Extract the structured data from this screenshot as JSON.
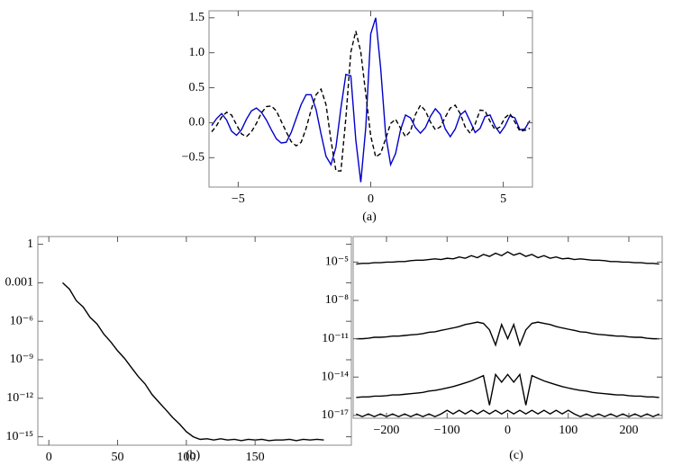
{
  "chart_data": [
    {
      "type": "line",
      "caption": "(a)",
      "x": [
        -6,
        -5.8125,
        -5.625,
        -5.4375,
        -5.25,
        -5.0625,
        -4.875,
        -4.6875,
        -4.5,
        -4.3125,
        -4.125,
        -3.9375,
        -3.75,
        -3.5625,
        -3.375,
        -3.1875,
        -3,
        -2.8125,
        -2.625,
        -2.4375,
        -2.25,
        -2.0625,
        -1.875,
        -1.6875,
        -1.5,
        -1.3125,
        -1.125,
        -0.9375,
        -0.75,
        -0.5625,
        -0.375,
        -0.1875,
        0,
        0.1875,
        0.375,
        0.5625,
        0.75,
        0.9375,
        1.125,
        1.3125,
        1.5,
        1.6875,
        1.875,
        2.0625,
        2.25,
        2.4375,
        2.625,
        2.8125,
        3,
        3.1875,
        3.375,
        3.5625,
        3.75,
        3.9375,
        4.125,
        4.3125,
        4.5,
        4.6875,
        4.875,
        5.0625,
        5.25,
        5.4375,
        5.625,
        5.8125,
        6
      ],
      "series": [
        {
          "color": "#0000cc",
          "dashed": false,
          "values": [
            -0.04,
            0.06,
            0.13,
            0.04,
            -0.12,
            -0.18,
            -0.1,
            0.05,
            0.17,
            0.21,
            0.15,
            0.04,
            -0.1,
            -0.23,
            -0.29,
            -0.28,
            -0.14,
            0.06,
            0.26,
            0.4,
            0.4,
            0.19,
            -0.16,
            -0.48,
            -0.6,
            -0.35,
            0.21,
            0.69,
            0.67,
            -0.25,
            -0.85,
            -0.07,
            1.27,
            1.5,
            0.78,
            -0.17,
            -0.6,
            -0.44,
            -0.1,
            0.11,
            0.07,
            -0.07,
            -0.15,
            -0.07,
            0.09,
            0.2,
            0.12,
            -0.09,
            -0.2,
            -0.09,
            0.11,
            0.17,
            0.02,
            -0.14,
            -0.08,
            0.09,
            0.11,
            -0.05,
            -0.15,
            -0.05,
            0.1,
            0.07,
            -0.1,
            -0.09,
            0.03
          ]
        },
        {
          "color": "#000000",
          "dashed": true,
          "values": [
            -0.13,
            -0.04,
            0.08,
            0.15,
            0.11,
            -0.03,
            -0.16,
            -0.2,
            -0.13,
            -0.01,
            0.14,
            0.23,
            0.24,
            0.17,
            0.02,
            -0.13,
            -0.27,
            -0.33,
            -0.28,
            -0.08,
            0.18,
            0.4,
            0.48,
            0.26,
            -0.25,
            -0.69,
            -0.69,
            0.07,
            1.01,
            1.31,
            1.01,
            0.41,
            -0.19,
            -0.49,
            -0.44,
            -0.23,
            -0.01,
            0.05,
            -0.08,
            -0.2,
            -0.12,
            0.12,
            0.25,
            0.17,
            0.01,
            -0.1,
            -0.06,
            0.08,
            0.21,
            0.25,
            0.13,
            -0.06,
            -0.15,
            -0.02,
            0.18,
            0.17,
            0.02,
            -0.1,
            -0.06,
            0.07,
            0.13,
            0.01,
            -0.12,
            -0.11,
            -0.08
          ]
        }
      ],
      "xlim": [
        -6.1,
        6.1
      ],
      "xticks": [
        {
          "value": -5,
          "label": "−5"
        },
        0,
        5
      ],
      "ylim": [
        -0.92,
        1.6
      ],
      "yticks": [
        {
          "value": -0.5,
          "label": "−0.5"
        },
        {
          "value": 0,
          "label": "0.0"
        },
        0.5,
        {
          "value": 1,
          "label": "1.0"
        },
        1.5
      ],
      "ylog": false
    },
    {
      "type": "line",
      "caption": "(b)",
      "x": [
        10,
        15,
        20,
        25,
        30,
        35,
        40,
        45,
        50,
        55,
        60,
        65,
        70,
        75,
        80,
        85,
        90,
        95,
        100,
        105,
        110,
        115,
        120,
        125,
        130,
        135,
        140,
        145,
        150,
        155,
        160,
        165,
        170,
        175,
        180,
        185,
        190,
        195,
        200
      ],
      "series": [
        {
          "color": "#000000",
          "dashed": false,
          "values": [
            0.001,
            0.00032,
            4e-05,
            1.3e-05,
            2e-06,
            6.3e-07,
            1e-07,
            2.5e-08,
            5e-09,
            1.3e-09,
            2.5e-10,
            5e-11,
            1.3e-11,
            2e-12,
            5e-13,
            1.3e-13,
            3.2e-14,
            1e-14,
            2.5e-15,
            1e-15,
            6.3e-16,
            7e-16,
            5.6e-16,
            7e-16,
            5.6e-16,
            6.3e-16,
            5e-16,
            6.3e-16,
            5.6e-16,
            6.3e-16,
            5e-16,
            5.6e-16,
            5.6e-16,
            6.3e-16,
            5e-16,
            6.3e-16,
            5.6e-16,
            6.3e-16,
            5.6e-16
          ]
        }
      ],
      "xlim": [
        -8,
        220
      ],
      "xticks": [
        0,
        50,
        100,
        150
      ],
      "ylim": [
        2.2e-16,
        4
      ],
      "yticks": [
        {
          "value": 1e-15,
          "label": "10⁻¹⁵"
        },
        {
          "value": 1e-12,
          "label": "10⁻¹²"
        },
        {
          "value": 1e-09,
          "label": "10⁻⁹"
        },
        {
          "value": 1e-06,
          "label": "10⁻⁶"
        },
        0.001,
        1
      ],
      "ylog": true
    },
    {
      "type": "line",
      "caption": "(c)",
      "x": [
        -250,
        -240,
        -230,
        -220,
        -210,
        -200,
        -190,
        -180,
        -170,
        -160,
        -150,
        -140,
        -130,
        -120,
        -110,
        -100,
        -90,
        -80,
        -70,
        -60,
        -50,
        -40,
        -30,
        -20,
        -10,
        0,
        10,
        20,
        30,
        40,
        50,
        60,
        70,
        80,
        90,
        100,
        110,
        120,
        130,
        140,
        150,
        160,
        170,
        180,
        190,
        200,
        210,
        220,
        230,
        240,
        250
      ],
      "series": [
        {
          "color": "#000000",
          "dashed": false,
          "values": [
            7e-06,
            8e-06,
            8e-06,
            9e-06,
            9e-06,
            1e-05,
            1e-05,
            1.1e-05,
            1.1e-05,
            1.3e-05,
            1.4e-05,
            1.4e-05,
            1.6e-05,
            1.8e-05,
            1.6e-05,
            2e-05,
            1.8e-05,
            2.5e-05,
            2e-05,
            3.2e-05,
            2.2e-05,
            4e-05,
            2.8e-05,
            5e-05,
            3.2e-05,
            6.3e-05,
            3.5e-05,
            5e-05,
            2.8e-05,
            4e-05,
            2.2e-05,
            3.2e-05,
            2e-05,
            2.5e-05,
            1.8e-05,
            2e-05,
            1.6e-05,
            1.8e-05,
            1.6e-05,
            1.4e-05,
            1.4e-05,
            1.3e-05,
            1.1e-05,
            1.1e-05,
            1e-05,
            1e-05,
            9e-06,
            9e-06,
            8e-06,
            8e-06,
            7e-06
          ]
        },
        {
          "color": "#000000",
          "dashed": false,
          "values": [
            1e-11,
            1e-11,
            1.1e-11,
            1.3e-11,
            1.3e-11,
            1.4e-11,
            1.6e-11,
            1.6e-11,
            1.8e-11,
            2e-11,
            2.2e-11,
            2.5e-11,
            3.2e-11,
            3.5e-11,
            4.5e-11,
            5.6e-11,
            7e-11,
            9e-11,
            1.3e-10,
            1.6e-10,
            2e-10,
            1.6e-10,
            5e-11,
            3.2e-12,
            1.3e-10,
            1e-11,
            1.3e-10,
            3.2e-12,
            5e-11,
            1.6e-10,
            2e-10,
            1.6e-10,
            1.3e-10,
            9e-11,
            7e-11,
            5.6e-11,
            4.5e-11,
            3.5e-11,
            3.2e-11,
            2.5e-11,
            2.2e-11,
            2e-11,
            1.8e-11,
            1.6e-11,
            1.6e-11,
            1.4e-11,
            1.3e-11,
            1.3e-11,
            1.1e-11,
            1e-11,
            1e-11
          ]
        },
        {
          "color": "#000000",
          "dashed": false,
          "values": [
            2.5e-16,
            2.8e-16,
            2.8e-16,
            3.2e-16,
            3.2e-16,
            3.5e-16,
            4e-16,
            4e-16,
            4.5e-16,
            5e-16,
            5.6e-16,
            6.3e-16,
            8e-16,
            9e-16,
            1.1e-15,
            1.4e-15,
            1.8e-15,
            2.5e-15,
            3.5e-15,
            5e-15,
            8e-15,
            1.3e-14,
            6.3e-17,
            1.6e-14,
            4e-15,
            1.6e-14,
            4e-15,
            1.6e-14,
            6.3e-17,
            1.3e-14,
            8e-15,
            5e-15,
            3.5e-15,
            2.5e-15,
            1.8e-15,
            1.4e-15,
            1.1e-15,
            9e-16,
            8e-16,
            6.3e-16,
            5.6e-16,
            5e-16,
            4.5e-16,
            4e-16,
            4e-16,
            3.5e-16,
            3.2e-16,
            3.2e-16,
            2.8e-16,
            2.8e-16,
            2.5e-16
          ]
        },
        {
          "color": "#000000",
          "dashed": false,
          "values": [
            1.3e-17,
            8e-18,
            1.3e-17,
            8e-18,
            1.3e-17,
            8e-18,
            1.3e-17,
            8e-18,
            1.3e-17,
            8e-18,
            1.3e-17,
            8e-18,
            1.3e-17,
            8e-18,
            1.3e-17,
            2.5e-17,
            1.3e-17,
            2.5e-17,
            1.3e-17,
            2.5e-17,
            1.3e-17,
            2.5e-17,
            1.3e-17,
            2.5e-17,
            1.3e-17,
            2.5e-17,
            1.3e-17,
            2.5e-17,
            1.3e-17,
            2.5e-17,
            1.3e-17,
            2.5e-17,
            1.3e-17,
            2.5e-17,
            1.3e-17,
            2.5e-17,
            1.3e-17,
            8e-18,
            1.3e-17,
            8e-18,
            1.3e-17,
            8e-18,
            1.3e-17,
            8e-18,
            1.3e-17,
            8e-18,
            1.3e-17,
            8e-18,
            1.3e-17,
            8e-18,
            1.3e-17
          ]
        }
      ],
      "xlim": [
        -255,
        255
      ],
      "xticks": [
        {
          "value": -200,
          "label": "−200"
        },
        {
          "value": -100,
          "label": "−100"
        },
        0,
        100,
        200
      ],
      "ylim": [
        6e-18,
        0.001
      ],
      "yticks": [
        {
          "value": 1e-17,
          "label": "10⁻¹⁷"
        },
        {
          "value": 1e-14,
          "label": "10⁻¹⁴"
        },
        {
          "value": 1e-11,
          "label": "10⁻¹¹"
        },
        {
          "value": 1e-08,
          "label": "10⁻⁸"
        },
        {
          "value": 1e-05,
          "label": "10⁻⁵"
        }
      ],
      "ylog": true
    }
  ]
}
